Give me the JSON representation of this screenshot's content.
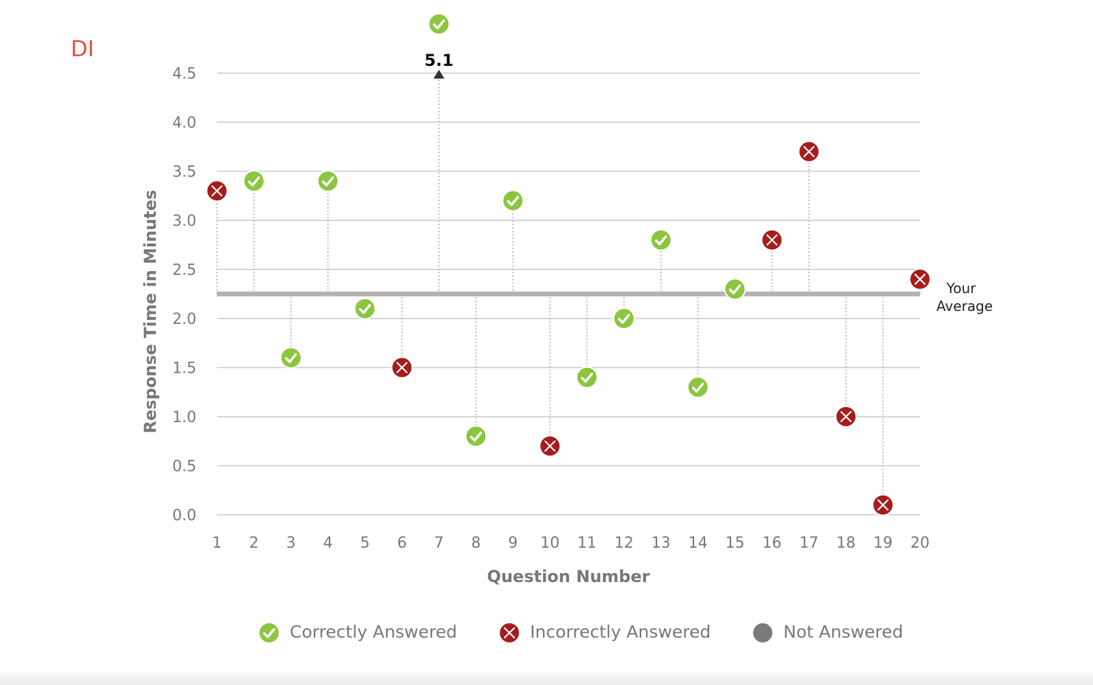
{
  "section_label": "DI",
  "colors": {
    "correct": "#8cc63f",
    "incorrect": "#a51d1d",
    "not_answered": "#7a7a7a",
    "average_line": "#b3b3b3",
    "grid": "#c9c9c9",
    "axis_text": "#777777",
    "section_label": "#e2533c"
  },
  "chart_data": {
    "type": "scatter",
    "title": "",
    "xlabel": "Question Number",
    "ylabel": "Response Time in Minutes",
    "x_ticks": [
      "1",
      "2",
      "3",
      "4",
      "5",
      "6",
      "7",
      "8",
      "9",
      "10",
      "11",
      "12",
      "13",
      "14",
      "15",
      "16",
      "17",
      "18",
      "19",
      "20"
    ],
    "y_ticks": [
      "0.0",
      "0.5",
      "1.0",
      "1.5",
      "2.0",
      "2.5",
      "3.0",
      "3.5",
      "4.0",
      "4.5"
    ],
    "ylim": [
      0,
      4.5
    ],
    "grid": true,
    "average": {
      "value": 2.25,
      "label_line1": "Your",
      "label_line2": "Average"
    },
    "points": [
      {
        "question": 1,
        "time": 3.3,
        "status": "incorrect"
      },
      {
        "question": 2,
        "time": 3.4,
        "status": "correct"
      },
      {
        "question": 3,
        "time": 1.6,
        "status": "correct"
      },
      {
        "question": 4,
        "time": 3.4,
        "status": "correct"
      },
      {
        "question": 5,
        "time": 2.1,
        "status": "correct"
      },
      {
        "question": 6,
        "time": 1.5,
        "status": "incorrect"
      },
      {
        "question": 7,
        "time": 5.1,
        "status": "correct",
        "overflow_label": "5.1"
      },
      {
        "question": 8,
        "time": 0.8,
        "status": "correct"
      },
      {
        "question": 9,
        "time": 3.2,
        "status": "correct"
      },
      {
        "question": 10,
        "time": 0.7,
        "status": "incorrect"
      },
      {
        "question": 11,
        "time": 1.4,
        "status": "correct"
      },
      {
        "question": 12,
        "time": 2.0,
        "status": "correct"
      },
      {
        "question": 13,
        "time": 2.8,
        "status": "correct"
      },
      {
        "question": 14,
        "time": 1.3,
        "status": "correct"
      },
      {
        "question": 15,
        "time": 2.3,
        "status": "correct"
      },
      {
        "question": 16,
        "time": 2.8,
        "status": "incorrect"
      },
      {
        "question": 17,
        "time": 3.7,
        "status": "incorrect"
      },
      {
        "question": 18,
        "time": 1.0,
        "status": "incorrect"
      },
      {
        "question": 19,
        "time": 0.1,
        "status": "incorrect"
      },
      {
        "question": 20,
        "time": 2.4,
        "status": "incorrect"
      }
    ],
    "legend": [
      {
        "status": "correct",
        "label": "Correctly Answered"
      },
      {
        "status": "incorrect",
        "label": "Incorrectly Answered"
      },
      {
        "status": "not_answered",
        "label": "Not Answered"
      }
    ]
  }
}
